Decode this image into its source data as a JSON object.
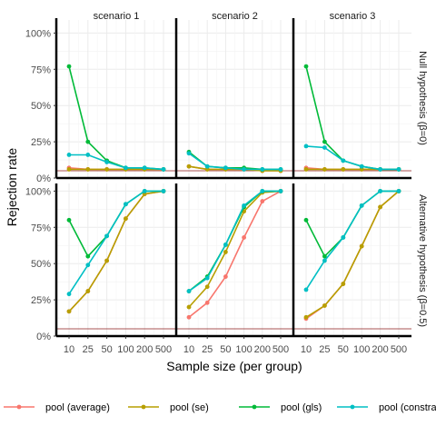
{
  "chart_data": {
    "type": "line",
    "xlabel": "Sample size (per group)",
    "ylabel": "Rejection rate",
    "x": [
      10,
      25,
      50,
      100,
      200,
      500
    ],
    "x_tick_labels": [
      "10",
      "25",
      "50",
      "100",
      "200",
      "500"
    ],
    "y_ticks": [
      0,
      25,
      50,
      75,
      100
    ],
    "y_tick_labels": [
      "0%",
      "25%",
      "50%",
      "75%",
      "100%"
    ],
    "ylim": [
      0,
      100
    ],
    "reference_line": 5,
    "grid": true,
    "legend_position": "bottom",
    "column_labels": [
      "scenario 1",
      "scenario 2",
      "scenario 3"
    ],
    "row_labels": [
      "Null hypothesis (β=0)",
      "Alternative hypothesis (β=0.5)"
    ],
    "series": [
      {
        "name": "pool (average)",
        "color": "#F8766D"
      },
      {
        "name": "pool (se)",
        "color": "#B79F00"
      },
      {
        "name": "pool (gls)",
        "color": "#00BA38"
      },
      {
        "name": "pool (constrai",
        "color": "#00BFC4"
      }
    ],
    "panels": [
      {
        "row": 0,
        "col": 0,
        "values": [
          [
            7,
            6,
            6,
            6,
            6,
            6
          ],
          [
            6,
            6,
            6,
            6,
            6,
            6
          ],
          [
            77,
            25,
            12,
            7,
            7,
            6
          ],
          [
            16,
            16,
            11,
            7,
            7,
            6
          ]
        ]
      },
      {
        "row": 0,
        "col": 1,
        "values": [
          [
            8,
            6,
            6,
            6,
            5,
            5
          ],
          [
            8,
            6,
            6,
            6,
            5,
            5
          ],
          [
            18,
            8,
            7,
            7,
            6,
            6
          ],
          [
            17,
            8,
            7,
            6,
            6,
            6
          ]
        ]
      },
      {
        "row": 0,
        "col": 2,
        "values": [
          [
            7,
            6,
            6,
            6,
            6,
            6
          ],
          [
            6,
            6,
            6,
            6,
            6,
            6
          ],
          [
            77,
            25,
            12,
            8,
            6,
            6
          ],
          [
            22,
            21,
            12,
            8,
            6,
            6
          ]
        ]
      },
      {
        "row": 1,
        "col": 0,
        "values": [
          [
            17,
            31,
            52,
            81,
            98,
            100
          ],
          [
            17,
            31,
            52,
            81,
            98,
            100
          ],
          [
            80,
            55,
            69,
            91,
            100,
            100
          ],
          [
            29,
            49,
            69,
            91,
            100,
            100
          ]
        ]
      },
      {
        "row": 1,
        "col": 1,
        "values": [
          [
            13,
            23,
            41,
            68,
            93,
            100
          ],
          [
            20,
            34,
            58,
            86,
            99,
            100
          ],
          [
            31,
            41,
            63,
            89,
            100,
            100
          ],
          [
            31,
            40,
            63,
            90,
            100,
            100
          ]
        ]
      },
      {
        "row": 1,
        "col": 2,
        "values": [
          [
            12,
            21,
            36,
            62,
            89,
            100
          ],
          [
            13,
            21,
            36,
            62,
            89,
            100
          ],
          [
            80,
            55,
            68,
            90,
            100,
            100
          ],
          [
            32,
            52,
            68,
            90,
            100,
            100
          ]
        ]
      }
    ]
  }
}
